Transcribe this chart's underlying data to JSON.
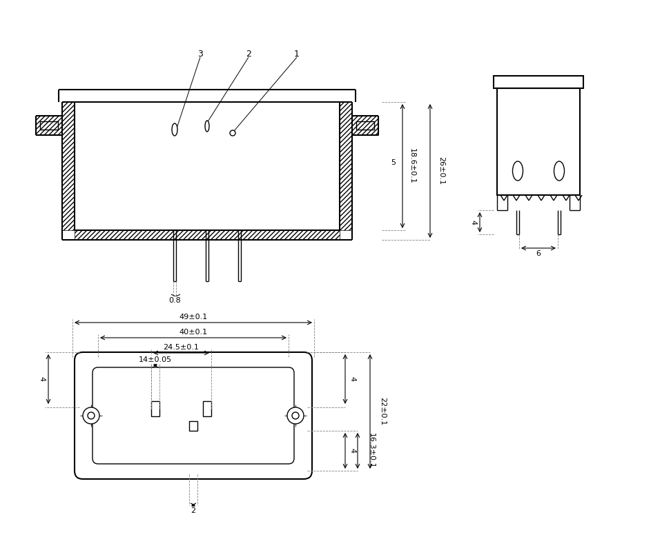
{
  "bg_color": "#ffffff",
  "line_color": "#000000",
  "hatch_color": "#000000",
  "fig_width": 9.43,
  "fig_height": 7.98,
  "font_size": 8,
  "font_family": "Arial"
}
